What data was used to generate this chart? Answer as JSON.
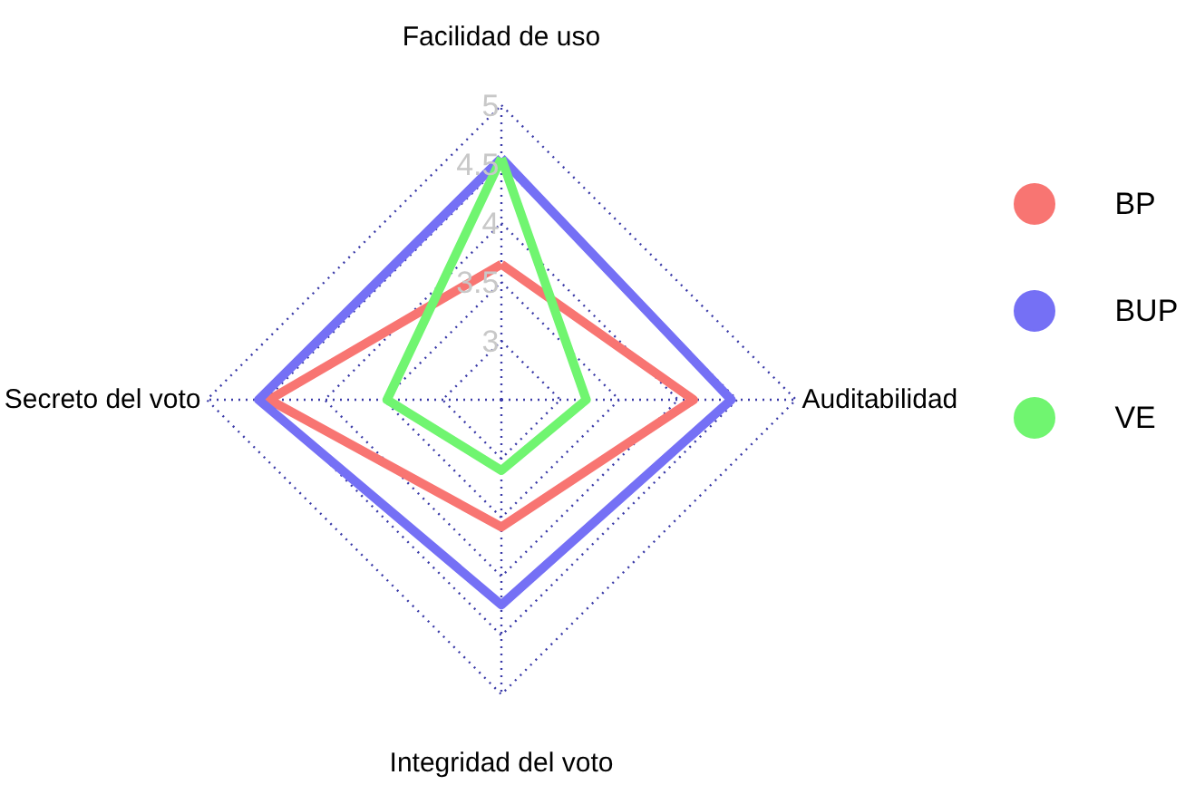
{
  "chart_data": {
    "type": "radar",
    "categories": [
      "Facilidad de uso",
      "Auditabilidad",
      "Integridad del voto",
      "Secreto del voto"
    ],
    "series": [
      {
        "name": "BP",
        "color": "#f87572",
        "values": [
          3.65,
          4.13,
          3.58,
          4.47
        ]
      },
      {
        "name": "BUP",
        "color": "#7570f5",
        "values": [
          4.55,
          4.45,
          4.24,
          4.56
        ]
      },
      {
        "name": "VE",
        "color": "#70f570",
        "values": [
          4.55,
          3.22,
          3.1,
          3.47
        ]
      }
    ],
    "ylim": [
      2.5,
      5
    ],
    "yticks": [
      3,
      3.5,
      4,
      4.5,
      5
    ],
    "grid": true,
    "legend": "right",
    "marker": "none",
    "line_style": "solid"
  }
}
